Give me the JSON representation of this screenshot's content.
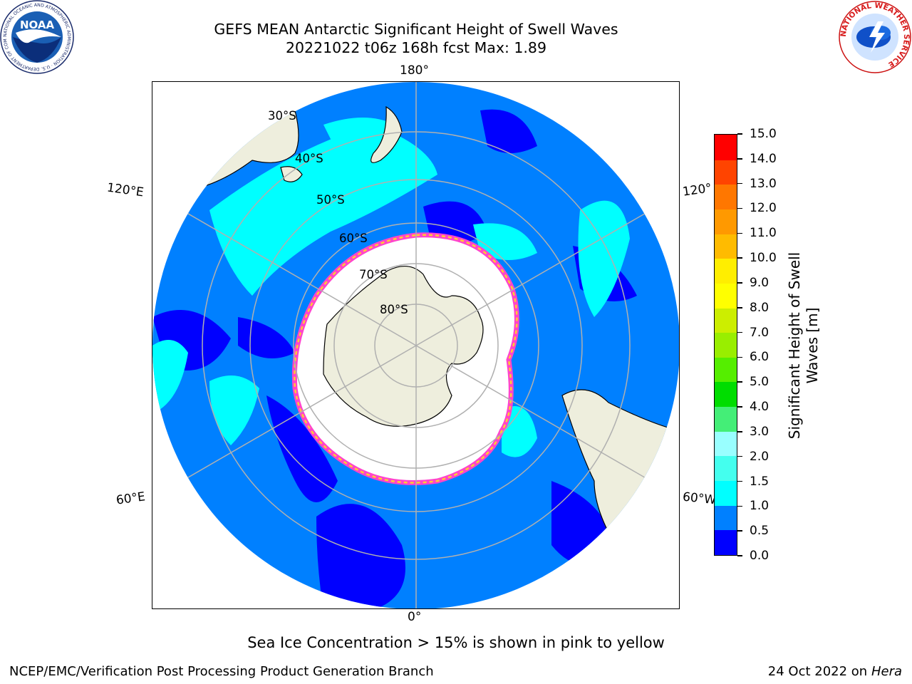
{
  "header": {
    "title_line1": "GEFS MEAN Antarctic Significant Height of Swell Waves",
    "title_line2": "20221022 t06z 168h fcst   Max: 1.89"
  },
  "logos": {
    "noaa_text": "NOAA",
    "noaa_ring": "NATIONAL OCEANIC AND ATMOSPHERIC ADMINISTRATION · U.S. DEPARTMENT OF COMMERCE ·",
    "nws_ring": "NATIONAL WEATHER SERVICE"
  },
  "map": {
    "longitude_labels": {
      "top": "180°",
      "bottom": "0°",
      "upper_left": "120°E",
      "upper_right": "120°",
      "lower_left": "60°E",
      "lower_right": "60°W"
    },
    "latitude_labels": [
      "30°S",
      "40°S",
      "50°S",
      "60°S",
      "70°S",
      "80°S"
    ],
    "colors": {
      "land": "#eeeedd",
      "ice": "#ffffff",
      "ice_edge_pink": "#ff44cc",
      "ice_edge_yellow": "#ffcc33"
    }
  },
  "colorbar": {
    "title_line1": "Significant Height of Swell",
    "title_line2": "Waves [m]",
    "tick_labels": [
      "0.0",
      "0.5",
      "1.0",
      "1.5",
      "2.0",
      "3.0",
      "4.0",
      "5.0",
      "6.0",
      "7.0",
      "8.0",
      "9.0",
      "10.0",
      "11.0",
      "12.0",
      "13.0",
      "14.0",
      "15.0"
    ],
    "bin_colors": [
      "#0000ff",
      "#0080ff",
      "#00ffff",
      "#44ffee",
      "#99ffff",
      "#44ee77",
      "#00dd00",
      "#55ee00",
      "#99ee00",
      "#ccee00",
      "#ffff00",
      "#ffee00",
      "#ffbb00",
      "#ff9900",
      "#ff7700",
      "#ff4400",
      "#ff0000"
    ]
  },
  "footer": {
    "ice_note": "Sea Ice Concentration > 15% is shown in pink to yellow",
    "branch": "NCEP/EMC/Verification Post Processing Product Generation Branch",
    "date": "24 Oct 2022 on",
    "machine": "Hera"
  }
}
